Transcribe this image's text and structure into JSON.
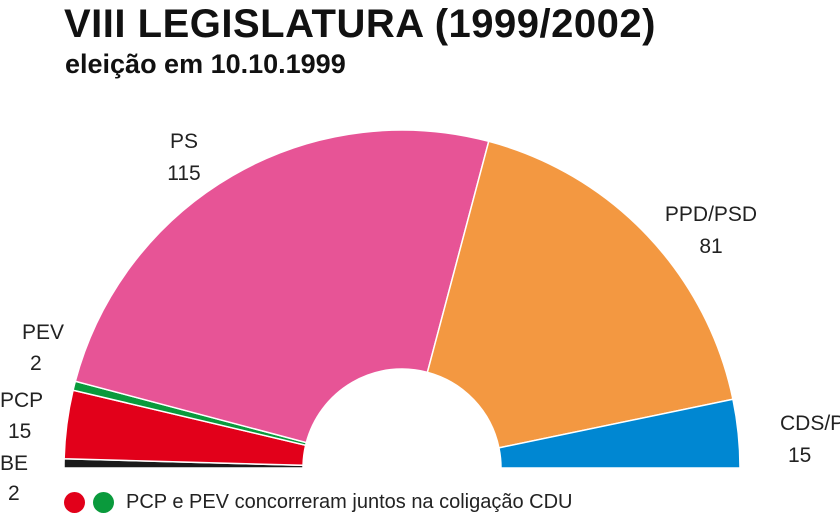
{
  "header": {
    "title": "VIII LEGISLATURA (1999/2002)",
    "subtitle": "eleição em 10.10.1999"
  },
  "chart_data": {
    "type": "pie",
    "variant": "semicircle-parliament",
    "total_seats": 230,
    "order": "left-to-right",
    "series": [
      {
        "label": "BE",
        "value": 2,
        "color": "#1a1a1a"
      },
      {
        "label": "PCP",
        "value": 15,
        "color": "#e2001a"
      },
      {
        "label": "PEV",
        "value": 2,
        "color": "#0a9a3c"
      },
      {
        "label": "PS",
        "value": 115,
        "color": "#e75496"
      },
      {
        "label": "PPD/PSD",
        "value": 81,
        "color": "#f39841"
      },
      {
        "label": "CDS/PP",
        "value": 15,
        "color": "#0087d2"
      }
    ]
  },
  "legend": {
    "note": "PCP e PEV concorreram juntos na coligação CDU",
    "dot_colors": [
      "#e2001a",
      "#0a9a3c"
    ]
  }
}
